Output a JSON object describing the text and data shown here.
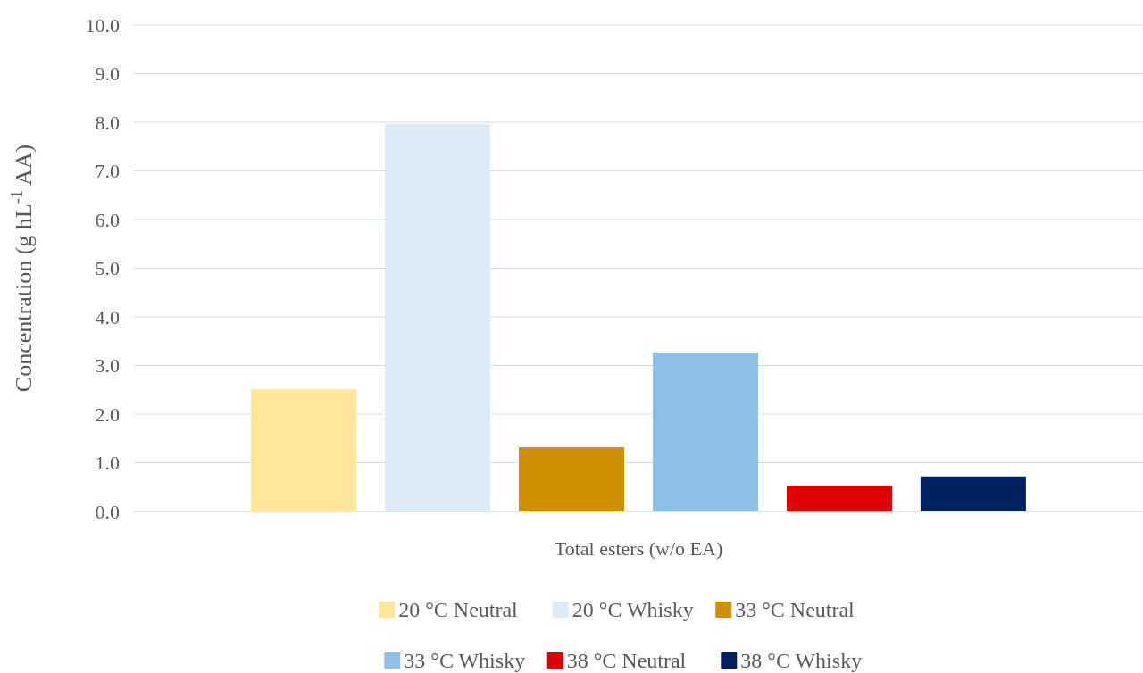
{
  "chart_data": {
    "type": "bar",
    "ylabel": "Concentration (g hL$^{-1}$ AA)",
    "categories": [
      "Total esters (w/o EA)"
    ],
    "series": [
      {
        "name": "20 °C Neutral",
        "color": "#ffe699",
        "values": [
          2.51
        ]
      },
      {
        "name": "20 °C Whisky",
        "color": "#ddebf7",
        "values": [
          7.96
        ]
      },
      {
        "name": "33 °C Neutral",
        "color": "#cc9000",
        "values": [
          1.32
        ]
      },
      {
        "name": "33 °C Whisky",
        "color": "#8fc1e6",
        "values": [
          3.27
        ]
      },
      {
        "name": "38 °C Neutral",
        "color": "#e00000",
        "values": [
          0.53
        ]
      },
      {
        "name": "38 °C Whisky",
        "color": "#002060",
        "values": [
          0.72
        ]
      }
    ],
    "ylim": [
      0,
      10
    ],
    "yticks": [
      {
        "value": 0,
        "label": "0.0"
      },
      {
        "value": 1,
        "label": "1.0"
      },
      {
        "value": 2,
        "label": "2.0"
      },
      {
        "value": 3,
        "label": "3.0"
      },
      {
        "value": 4,
        "label": "4.0"
      },
      {
        "value": 5,
        "label": "5.0"
      },
      {
        "value": 6,
        "label": "6.0"
      },
      {
        "value": 7,
        "label": "7.0"
      },
      {
        "value": 8,
        "label": "8.0"
      },
      {
        "value": 9,
        "label": "9.0"
      },
      {
        "value": 10,
        "label": "10.0"
      }
    ],
    "grid": "y",
    "legend": "bottom"
  }
}
